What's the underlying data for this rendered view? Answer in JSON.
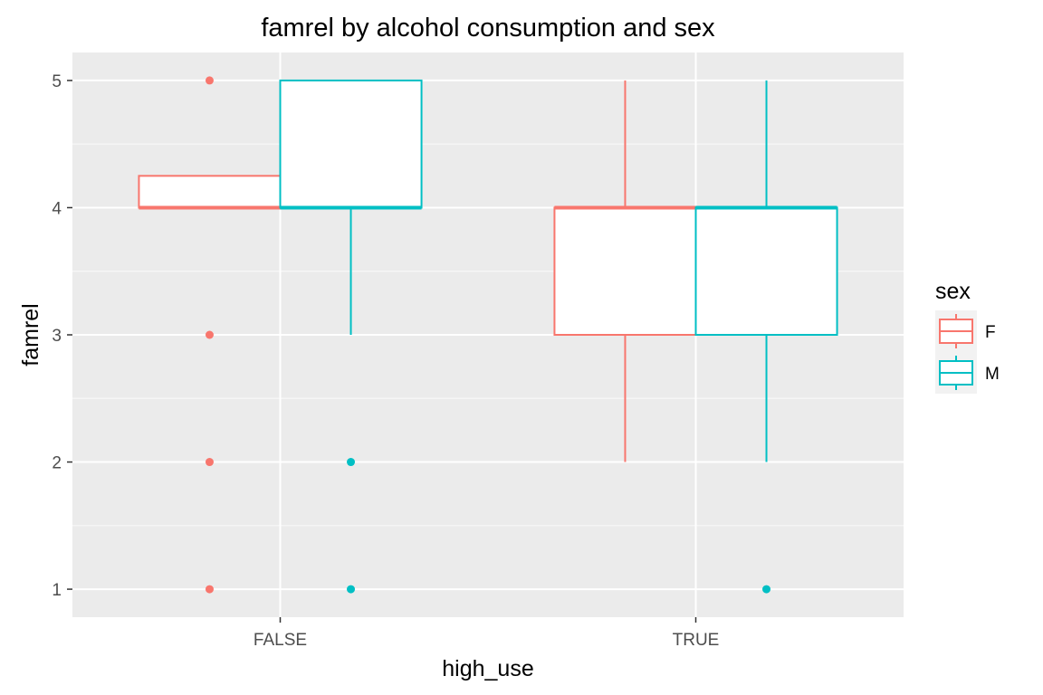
{
  "chart_data": {
    "type": "boxplot",
    "title": "famrel by alcohol consumption and sex",
    "xlabel": "high_use",
    "ylabel": "famrel",
    "categories": [
      "FALSE",
      "TRUE"
    ],
    "ylim": [
      0.78,
      5.22
    ],
    "yticks": [
      1,
      2,
      3,
      4,
      5
    ],
    "grid": true,
    "legend": {
      "title": "sex",
      "position": "right"
    },
    "series": [
      {
        "name": "F",
        "color": "#F8766D",
        "boxes": [
          {
            "category": "FALSE",
            "whisker_low": 4,
            "q1": 4,
            "median": 4,
            "q3": 4.25,
            "whisker_high": 4.25,
            "outliers": [
              5,
              3,
              2,
              1
            ]
          },
          {
            "category": "TRUE",
            "whisker_low": 2,
            "q1": 3,
            "median": 4,
            "q3": 4,
            "whisker_high": 5,
            "outliers": []
          }
        ]
      },
      {
        "name": "M",
        "color": "#00BFC4",
        "boxes": [
          {
            "category": "FALSE",
            "whisker_low": 3,
            "q1": 4,
            "median": 4,
            "q3": 5,
            "whisker_high": 5,
            "outliers": [
              2,
              1
            ]
          },
          {
            "category": "TRUE",
            "whisker_low": 2,
            "q1": 3,
            "median": 4,
            "q3": 4,
            "whisker_high": 5,
            "outliers": [
              1
            ]
          }
        ]
      }
    ]
  }
}
